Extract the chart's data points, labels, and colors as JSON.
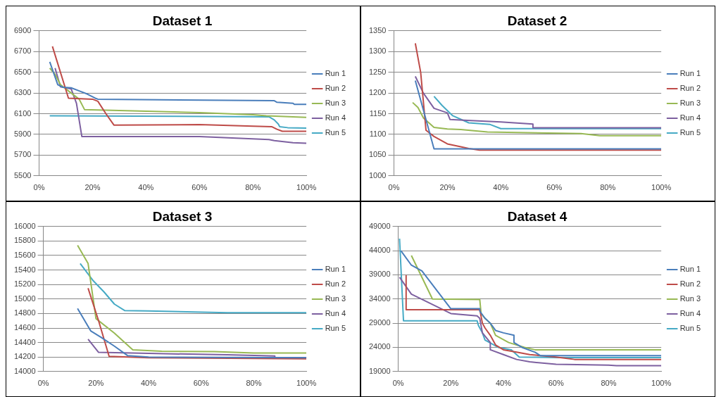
{
  "chart_data": [
    {
      "type": "line",
      "title": "Dataset 1",
      "xlim": [
        0,
        100
      ],
      "xticks": [
        {
          "value": 0,
          "label": "0%"
        },
        {
          "value": 20,
          "label": "20%"
        },
        {
          "value": 40,
          "label": "40%"
        },
        {
          "value": 60,
          "label": "60%"
        },
        {
          "value": 80,
          "label": "80%"
        },
        {
          "value": 100,
          "label": "100%"
        }
      ],
      "ylim": [
        5500,
        6900
      ],
      "yticks": [
        5500,
        5700,
        5900,
        6100,
        6300,
        6500,
        6700,
        6900
      ],
      "grid": "y",
      "legend": "right",
      "marker": "none",
      "line_style": "solid",
      "series": [
        {
          "name": "Run 1",
          "color": "#4a7ebb",
          "x": [
            4,
            7,
            9,
            12,
            15,
            18,
            21,
            22,
            88,
            89,
            95,
            95.5,
            100
          ],
          "values": [
            6600,
            6380,
            6355,
            6350,
            6320,
            6290,
            6250,
            6240,
            6225,
            6210,
            6200,
            6190,
            6190
          ]
        },
        {
          "name": "Run 2",
          "color": "#be4b48",
          "x": [
            5,
            11,
            20,
            22,
            25,
            28,
            60,
            80,
            87,
            89,
            91,
            100
          ],
          "values": [
            6750,
            6250,
            6240,
            6220,
            6100,
            5990,
            5995,
            5980,
            5975,
            5950,
            5930,
            5930
          ]
        },
        {
          "name": "Run 3",
          "color": "#98b954",
          "x": [
            4,
            6,
            8,
            12,
            15,
            17,
            30,
            60,
            80,
            85,
            100
          ],
          "values": [
            6540,
            6480,
            6380,
            6300,
            6240,
            6140,
            6130,
            6110,
            6090,
            6080,
            6065
          ]
        },
        {
          "name": "Run 4",
          "color": "#7d60a0",
          "x": [
            6,
            8,
            12,
            14,
            16,
            60,
            86,
            88,
            95,
            100
          ],
          "values": [
            6540,
            6360,
            6340,
            6200,
            5880,
            5880,
            5850,
            5840,
            5820,
            5815
          ]
        },
        {
          "name": "Run 5",
          "color": "#46aac5",
          "x": [
            4,
            86,
            88,
            89.5,
            90,
            93,
            100
          ],
          "values": [
            6080,
            6070,
            6040,
            6000,
            5975,
            5965,
            5960
          ]
        }
      ]
    },
    {
      "type": "line",
      "title": "Dataset 2",
      "xlim": [
        0,
        100
      ],
      "xticks": [
        {
          "value": 0,
          "label": "0%"
        },
        {
          "value": 20,
          "label": "20%"
        },
        {
          "value": 40,
          "label": "40%"
        },
        {
          "value": 60,
          "label": "60%"
        },
        {
          "value": 80,
          "label": "80%"
        },
        {
          "value": 100,
          "label": "100%"
        }
      ],
      "ylim": [
        1000,
        1350
      ],
      "yticks": [
        1000,
        1050,
        1100,
        1150,
        1200,
        1250,
        1300,
        1350
      ],
      "grid": "y",
      "legend": "right",
      "marker": "none",
      "line_style": "solid",
      "series": [
        {
          "name": "Run 1",
          "color": "#4a7ebb",
          "x": [
            8,
            15,
            100
          ],
          "values": [
            1230,
            1065,
            1065
          ]
        },
        {
          "name": "Run 2",
          "color": "#be4b48",
          "x": [
            8,
            10,
            12,
            15,
            20,
            25,
            28,
            32,
            100
          ],
          "values": [
            1320,
            1250,
            1110,
            1095,
            1077,
            1070,
            1066,
            1062,
            1062
          ]
        },
        {
          "name": "Run 3",
          "color": "#98b954",
          "x": [
            7,
            9,
            11,
            15,
            20,
            25,
            35,
            50,
            70,
            77,
            100
          ],
          "values": [
            1177,
            1165,
            1140,
            1117,
            1113,
            1112,
            1106,
            1104,
            1102,
            1097,
            1097
          ]
        },
        {
          "name": "Run 4",
          "color": "#7d60a0",
          "x": [
            8,
            11,
            15,
            20,
            21,
            30,
            40,
            52,
            52,
            100
          ],
          "values": [
            1240,
            1200,
            1163,
            1152,
            1136,
            1133,
            1130,
            1125,
            1116,
            1116
          ]
        },
        {
          "name": "Run 5",
          "color": "#46aac5",
          "x": [
            15,
            18,
            22,
            28,
            36,
            40,
            100
          ],
          "values": [
            1192,
            1170,
            1145,
            1128,
            1124,
            1114,
            1114
          ]
        }
      ]
    },
    {
      "type": "line",
      "title": "Dataset 3",
      "xlim": [
        0,
        100
      ],
      "xticks": [
        {
          "value": 0,
          "label": "0%"
        },
        {
          "value": 20,
          "label": "20%"
        },
        {
          "value": 40,
          "label": "40%"
        },
        {
          "value": 60,
          "label": "60%"
        },
        {
          "value": 80,
          "label": "80%"
        },
        {
          "value": 100,
          "label": "100%"
        }
      ],
      "ylim": [
        14000,
        16000
      ],
      "yticks": [
        14000,
        14200,
        14400,
        14600,
        14800,
        15000,
        15200,
        15400,
        15600,
        15800,
        16000
      ],
      "grid": "y",
      "legend": "right",
      "marker": "none",
      "line_style": "solid",
      "series": [
        {
          "name": "Run 1",
          "color": "#4a7ebb",
          "x": [
            13,
            18,
            22,
            27,
            32,
            40,
            100
          ],
          "values": [
            14870,
            14560,
            14470,
            14350,
            14220,
            14200,
            14190
          ]
        },
        {
          "name": "Run 2",
          "color": "#be4b48",
          "x": [
            17,
            21,
            25,
            40,
            100
          ],
          "values": [
            15150,
            14700,
            14210,
            14190,
            14175
          ]
        },
        {
          "name": "Run 3",
          "color": "#98b954",
          "x": [
            13,
            17,
            20,
            27,
            34,
            45,
            65,
            80,
            100
          ],
          "values": [
            15740,
            15490,
            14730,
            14530,
            14300,
            14280,
            14275,
            14255,
            14255
          ]
        },
        {
          "name": "Run 4",
          "color": "#7d60a0",
          "x": [
            17,
            21,
            40,
            70,
            88,
            88,
            100
          ],
          "values": [
            14445,
            14265,
            14250,
            14230,
            14215,
            14190,
            14190
          ]
        },
        {
          "name": "Run 5",
          "color": "#46aac5",
          "x": [
            14,
            19,
            23,
            27,
            31,
            40,
            70,
            100
          ],
          "values": [
            15490,
            15250,
            15100,
            14930,
            14840,
            14835,
            14810,
            14810
          ]
        }
      ]
    },
    {
      "type": "line",
      "title": "Dataset 4",
      "xlim": [
        0,
        100
      ],
      "xticks": [
        {
          "value": 0,
          "label": "0%"
        },
        {
          "value": 20,
          "label": "20%"
        },
        {
          "value": 40,
          "label": "40%"
        },
        {
          "value": 60,
          "label": "60%"
        },
        {
          "value": 80,
          "label": "80%"
        },
        {
          "value": 100,
          "label": "100%"
        }
      ],
      "ylim": [
        19000,
        49000
      ],
      "yticks": [
        19000,
        24000,
        29000,
        34000,
        39000,
        44000,
        49000
      ],
      "grid": "y",
      "legend": "right",
      "marker": "none",
      "line_style": "solid",
      "series": [
        {
          "name": "Run 1",
          "color": "#4a7ebb",
          "x": [
            1,
            5,
            9,
            20,
            31,
            31,
            33,
            35,
            37,
            40,
            44,
            44,
            47,
            52,
            54,
            100
          ],
          "values": [
            44000,
            41000,
            39800,
            32000,
            32000,
            31500,
            30000,
            29000,
            27500,
            27000,
            26500,
            25000,
            24000,
            23000,
            22300,
            22300
          ]
        },
        {
          "name": "Run 2",
          "color": "#be4b48",
          "x": [
            3,
            3,
            31,
            32,
            33,
            35,
            37,
            40,
            45,
            50,
            60,
            67,
            100
          ],
          "values": [
            38800,
            31800,
            31800,
            29000,
            28000,
            26500,
            24500,
            23500,
            23000,
            22500,
            22000,
            21500,
            21500
          ]
        },
        {
          "name": "Run 3",
          "color": "#98b954",
          "x": [
            5,
            13,
            31,
            31.5,
            33,
            35,
            37,
            42,
            48,
            52,
            100
          ],
          "values": [
            43000,
            34000,
            33900,
            31000,
            30000,
            29000,
            26500,
            25000,
            24000,
            23500,
            23500
          ]
        },
        {
          "name": "Run 4",
          "color": "#7d60a0",
          "x": [
            0.5,
            5,
            20,
            30,
            31,
            32,
            35,
            35,
            40,
            45,
            50,
            60,
            80,
            83,
            100
          ],
          "values": [
            38500,
            35000,
            31000,
            30500,
            30000,
            27000,
            25000,
            23500,
            22500,
            21500,
            21000,
            20500,
            20300,
            20200,
            20200
          ]
        },
        {
          "name": "Run 5",
          "color": "#46aac5",
          "x": [
            0.5,
            2,
            30,
            30.5,
            32,
            33,
            38,
            43,
            46,
            60,
            100
          ],
          "values": [
            46500,
            29500,
            29500,
            28500,
            27000,
            25500,
            24000,
            23500,
            22000,
            21900,
            21900
          ]
        }
      ]
    }
  ]
}
